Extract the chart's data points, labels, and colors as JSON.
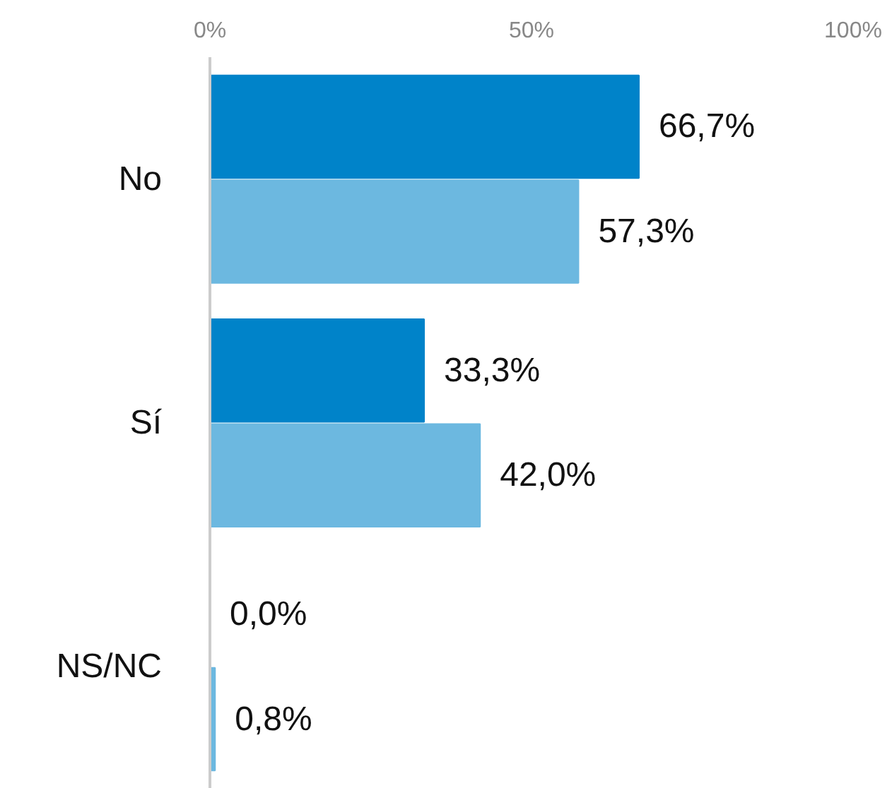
{
  "chart_data": {
    "type": "bar",
    "orientation": "horizontal",
    "categories": [
      "No",
      "Sí",
      "NS/NC"
    ],
    "series": [
      {
        "color": "#0083c9",
        "values": [
          66.7,
          33.3,
          0.0
        ],
        "value_labels": [
          "66,7%",
          "33,3%",
          "0,0%"
        ]
      },
      {
        "color": "#6cb8e0",
        "values": [
          57.3,
          42.0,
          0.8
        ],
        "value_labels": [
          "57,3%",
          "42,0%",
          "0,8%"
        ]
      }
    ],
    "xlim": [
      0,
      100
    ],
    "xticks": [
      {
        "value": 0,
        "label": "0%"
      },
      {
        "value": 50,
        "label": "50%"
      },
      {
        "value": 100,
        "label": "100%"
      }
    ],
    "grid": false
  }
}
